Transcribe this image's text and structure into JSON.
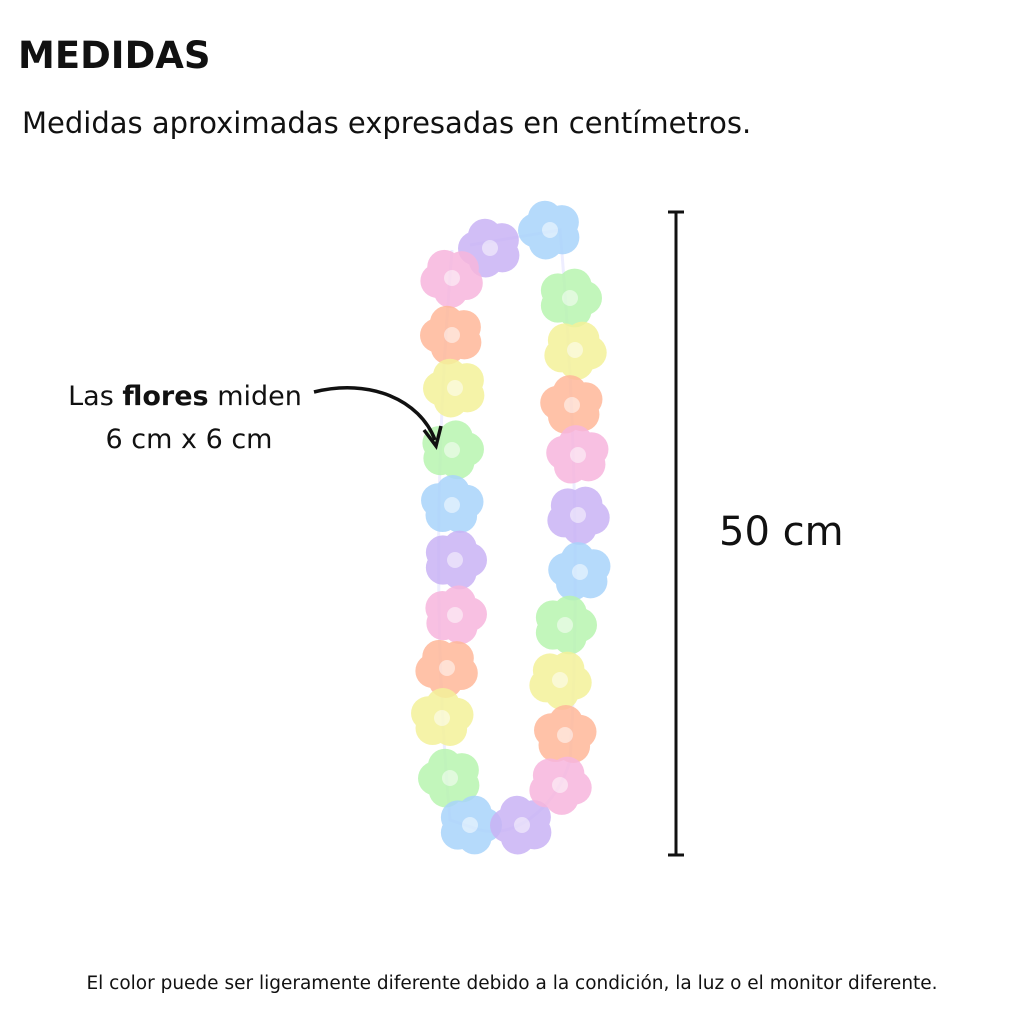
{
  "header": {
    "title": "MEDIDAS",
    "subtitle": "Medidas aproximadas expresadas en centímetros."
  },
  "annotation": {
    "prefix": "Las ",
    "bold": "flores",
    "suffix": " miden",
    "size": "6 cm x 6 cm"
  },
  "measure": {
    "length": "50 cm"
  },
  "footer": {
    "note": "El color puede ser ligeramente diferente debido a la condición, la luz o el monitor diferente."
  }
}
